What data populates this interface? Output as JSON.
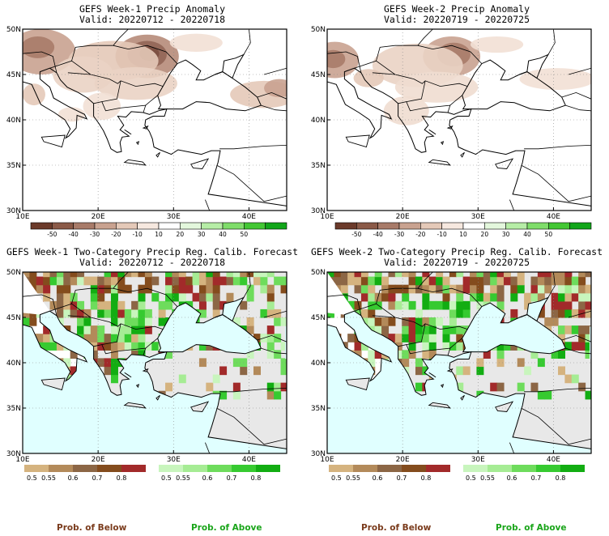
{
  "panels": [
    {
      "title": "GEFS Week-1 Precip Anomaly",
      "valid": "Valid: 20220712 - 20220718",
      "kind": "anomaly"
    },
    {
      "title": "GEFS Week-2 Precip Anomaly",
      "valid": "Valid: 20220719 - 20220725",
      "kind": "anomaly"
    },
    {
      "title": "GEFS Week-1 Two-Category Precip Reg. Calib. Forecast",
      "valid": "Valid: 20220712 - 20220718",
      "kind": "probability"
    },
    {
      "title": "GEFS Week-2 Two-Category Precip Reg. Calib. Forecast",
      "valid": "Valid: 20220719 - 20220725",
      "kind": "probability"
    }
  ],
  "lat_labels": [
    "30N",
    "35N",
    "40N",
    "45N",
    "50N"
  ],
  "lon_labels": [
    "10E",
    "20E",
    "30E",
    "40E"
  ],
  "anomaly_scale": {
    "labels": [
      "-50",
      "-40",
      "-30",
      "-20",
      "-10",
      "10",
      "20",
      "30",
      "40",
      "50"
    ],
    "colors": [
      "#6b3a2a",
      "#8b5a48",
      "#a87b69",
      "#c9a290",
      "#e4c9b8",
      "#f6e8df",
      "#ffffff",
      "#e3f7dc",
      "#b6eda6",
      "#7fdd6a",
      "#43c734",
      "#12a61a"
    ]
  },
  "prob_below_scale": {
    "labels": [
      "0.5",
      "0.55",
      "0.6",
      "0.7",
      "0.8"
    ],
    "colors": [
      "#d5b37f",
      "#b38a5a",
      "#8c6645",
      "#844c1d",
      "#a22a2a"
    ]
  },
  "prob_above_scale": {
    "labels": [
      "0.5",
      "0.55",
      "0.6",
      "0.7",
      "0.8"
    ],
    "colors": [
      "#c8f5bd",
      "#a6ec94",
      "#6edc5c",
      "#36ca30",
      "#12ad12"
    ]
  },
  "prob_labels": {
    "below": "Prob. of Below",
    "above": "Prob. of Above"
  },
  "chart_data": [
    {
      "type": "heatmap",
      "title": "GEFS Week-1 Precip Anomaly",
      "subtitle": "Valid: 20220712 - 20220718",
      "xlim": [
        10,
        45
      ],
      "ylim": [
        30,
        50
      ],
      "x_ticks": [
        "10E",
        "20E",
        "30E",
        "40E"
      ],
      "y_ticks": [
        "30N",
        "35N",
        "40N",
        "45N",
        "50N"
      ],
      "colorbar": [
        "-50",
        "-40",
        "-30",
        "-20",
        "-10",
        "10",
        "20",
        "30",
        "40",
        "50"
      ],
      "grid": true
    },
    {
      "type": "heatmap",
      "title": "GEFS Week-2 Precip Anomaly",
      "subtitle": "Valid: 20220719 - 20220725",
      "xlim": [
        10,
        45
      ],
      "ylim": [
        30,
        50
      ],
      "x_ticks": [
        "10E",
        "20E",
        "30E",
        "40E"
      ],
      "y_ticks": [
        "30N",
        "35N",
        "40N",
        "45N",
        "50N"
      ],
      "colorbar": [
        "-50",
        "-40",
        "-30",
        "-20",
        "-10",
        "10",
        "20",
        "30",
        "40",
        "50"
      ],
      "grid": true
    },
    {
      "type": "heatmap",
      "title": "GEFS Week-1 Two-Category Precip Reg. Calib. Forecast",
      "subtitle": "Valid: 20220712 - 20220718",
      "xlim": [
        10,
        45
      ],
      "ylim": [
        30,
        50
      ],
      "x_ticks": [
        "10E",
        "20E",
        "30E",
        "40E"
      ],
      "y_ticks": [
        "30N",
        "35N",
        "40N",
        "45N",
        "50N"
      ],
      "colorbar_below": [
        "0.5",
        "0.55",
        "0.6",
        "0.7",
        "0.8"
      ],
      "colorbar_above": [
        "0.5",
        "0.55",
        "0.6",
        "0.7",
        "0.8"
      ]
    },
    {
      "type": "heatmap",
      "title": "GEFS Week-2 Two-Category Precip Reg. Calib. Forecast",
      "subtitle": "Valid: 20220719 - 20220725",
      "xlim": [
        10,
        45
      ],
      "ylim": [
        30,
        50
      ],
      "x_ticks": [
        "10E",
        "20E",
        "30E",
        "40E"
      ],
      "y_ticks": [
        "30N",
        "35N",
        "40N",
        "45N",
        "50N"
      ],
      "colorbar_below": [
        "0.5",
        "0.55",
        "0.6",
        "0.7",
        "0.8"
      ],
      "colorbar_above": [
        "0.5",
        "0.55",
        "0.6",
        "0.7",
        "0.8"
      ]
    }
  ]
}
